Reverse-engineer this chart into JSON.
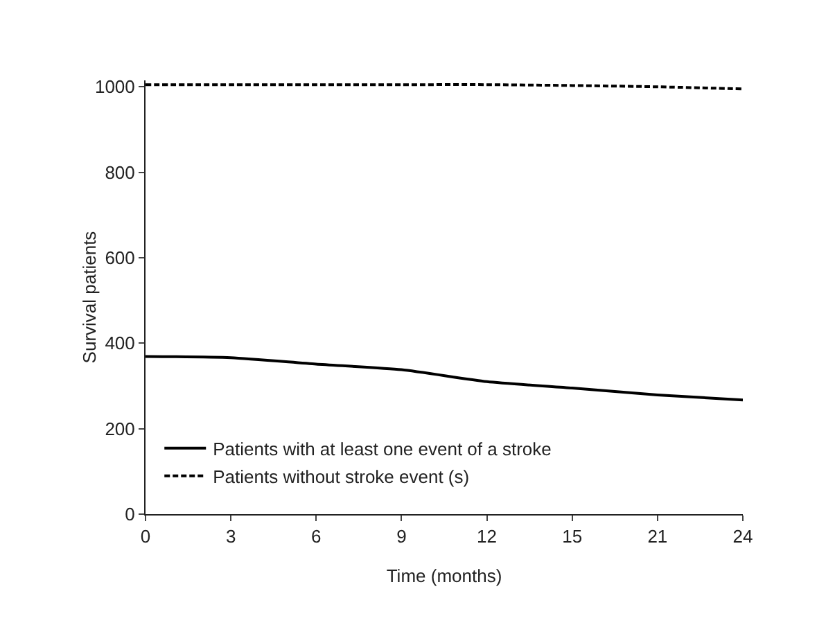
{
  "chart_data": {
    "type": "line",
    "xlabel": "Time (months)",
    "ylabel": "Survival patients",
    "categories": [
      "0",
      "3",
      "6",
      "9",
      "12",
      "15",
      "21",
      "24"
    ],
    "series": [
      {
        "name": "Patients with at least one event of a stroke",
        "color": "#000000",
        "line_style": "solid",
        "values": [
          369,
          366,
          351,
          338,
          310,
          295,
          279,
          267
        ]
      },
      {
        "name": "Patients without stroke event (s)",
        "color": "#000000",
        "line_style": "dashed",
        "values": [
          1005,
          1005,
          1005,
          1005,
          1005,
          1003,
          1000,
          995
        ]
      }
    ],
    "ylim": [
      0,
      1015
    ],
    "yticks": [
      0,
      200,
      400,
      600,
      800,
      1000
    ],
    "grid": false,
    "legend": "bottom left",
    "marker": "none"
  }
}
